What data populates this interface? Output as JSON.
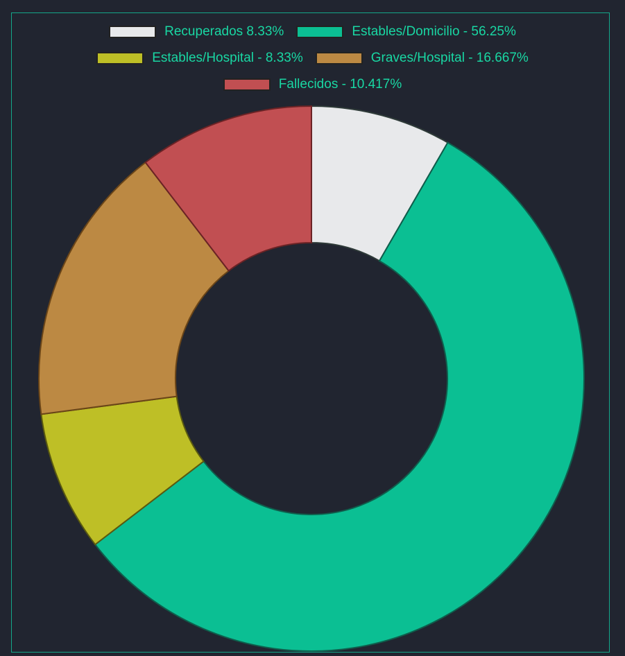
{
  "chart_data": {
    "type": "pie",
    "variant": "doughnut",
    "categories": [
      "Recuperados 8.33%",
      "Estables/Domicilio - 56.25%",
      "Estables/Hospital - 8.33%",
      "Graves/Hospital - 16.667%",
      "Fallecidos - 10.417%"
    ],
    "values": [
      8.33,
      56.25,
      8.33,
      16.667,
      10.417
    ],
    "colors": [
      "#e8e9eb",
      "#0bbf93",
      "#bebf26",
      "#bc8943",
      "#c14f52"
    ],
    "borders": [
      "#2e3a38",
      "#0f5e4c",
      "#5a5a10",
      "#6a4518",
      "#6b2325"
    ],
    "legend_position": "top",
    "title": ""
  },
  "legend": {
    "rows": [
      [
        {
          "label": "Recuperados 8.33%",
          "color": "#e8e9eb"
        },
        {
          "label": "Estables/Domicilio - 56.25%",
          "color": "#0bbf93"
        }
      ],
      [
        {
          "label": "Estables/Hospital - 8.33%",
          "color": "#bebf26"
        },
        {
          "label": "Graves/Hospital - 16.667%",
          "color": "#bc8943"
        }
      ],
      [
        {
          "label": "Fallecidos - 10.417%",
          "color": "#c14f52"
        }
      ]
    ]
  }
}
